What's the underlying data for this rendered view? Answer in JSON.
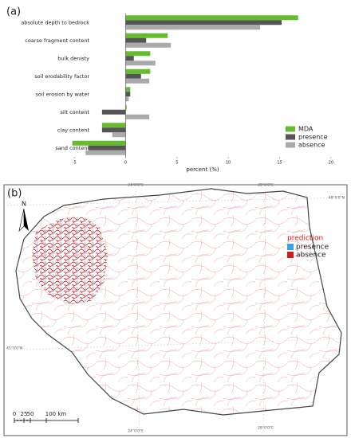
{
  "chart_data": {
    "type": "barh",
    "panel_label": "(a)",
    "categories": [
      "absolute depth to bedrock",
      "coarse fragment content",
      "bulk denisty",
      "soil erodability factor",
      "soil erosion by water",
      "silt content",
      "clay content",
      "sand content"
    ],
    "series": [
      {
        "name": "MDA",
        "color": "#66bb2e",
        "values": [
          16.8,
          4.1,
          2.4,
          2.4,
          0.45,
          0.1,
          -2.3,
          -5.2
        ]
      },
      {
        "name": "presence",
        "color": "#555555",
        "values": [
          15.2,
          2.0,
          0.8,
          1.5,
          0.45,
          -2.3,
          -2.3,
          -3.6
        ]
      },
      {
        "name": "absence",
        "color": "#aaaaaa",
        "values": [
          13.1,
          4.4,
          2.9,
          2.3,
          0.3,
          2.3,
          -1.3,
          -3.9
        ]
      }
    ],
    "xlabel": "percent (%)",
    "xlim": [
      -5.4,
      20.4
    ],
    "xticks": [
      -5,
      0,
      5,
      10,
      15,
      20
    ],
    "grid": false,
    "legend": "lower right"
  },
  "map": {
    "panel_label": "(b)",
    "north": "N",
    "legend_title": "prediction",
    "legend": [
      {
        "name": "presence",
        "color": "#3aa0e0"
      },
      {
        "name": "absence",
        "color": "#c81e1e"
      }
    ],
    "scale": [
      "0",
      "25",
      "50",
      "100 km"
    ],
    "coords": {
      "top_24": "24°0'0\"E",
      "top_28": "28°0'0\"E",
      "right_48": "48°0'0\"N",
      "left_45": "45°0'0\"N",
      "bottom_24": "24°0'0\"E",
      "bottom_28": "28°0'0\"E"
    }
  }
}
